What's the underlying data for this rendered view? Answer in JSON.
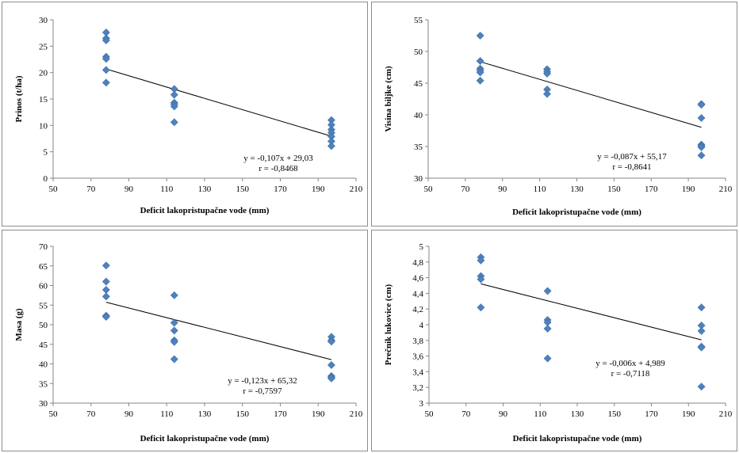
{
  "chart_data": [
    {
      "type": "scatter",
      "xlabel": "Deficit lakopristupačne vode (mm)",
      "ylabel": "Prinos (t/ha)",
      "xlim": [
        50,
        210
      ],
      "ylim": [
        0,
        30
      ],
      "xticks": [
        "50",
        "70",
        "90",
        "110",
        "130",
        "150",
        "170",
        "190",
        "210"
      ],
      "yticks": [
        "0",
        "5",
        "10",
        "15",
        "20",
        "25",
        "30"
      ],
      "marker_color": "#4f81bd",
      "points": [
        [
          78,
          27.6
        ],
        [
          78,
          26.5
        ],
        [
          78,
          26.1
        ],
        [
          78,
          23.0
        ],
        [
          78,
          22.6
        ],
        [
          78,
          20.5
        ],
        [
          78,
          18.1
        ],
        [
          114,
          16.9
        ],
        [
          114,
          15.8
        ],
        [
          114,
          14.3
        ],
        [
          114,
          14.0
        ],
        [
          114,
          13.6
        ],
        [
          114,
          10.6
        ],
        [
          197,
          11.0
        ],
        [
          197,
          10.1
        ],
        [
          197,
          9.2
        ],
        [
          197,
          8.6
        ],
        [
          197,
          7.9
        ],
        [
          197,
          7.0
        ],
        [
          197,
          6.1
        ]
      ],
      "trendline": {
        "slope": -0.107,
        "intercept": 29.03,
        "x_range": [
          78,
          197
        ]
      },
      "equation": "y = -0,107x + 29,03",
      "r_text": "r = -0,8468"
    },
    {
      "type": "scatter",
      "xlabel": "Deficit lakopristupačne vode (mm)",
      "ylabel": "Visina biljke (cm)",
      "xlim": [
        50,
        210
      ],
      "ylim": [
        30,
        55
      ],
      "xticks": [
        "50",
        "70",
        "90",
        "110",
        "130",
        "150",
        "170",
        "190",
        "210"
      ],
      "yticks": [
        "30",
        "35",
        "40",
        "45",
        "50",
        "55"
      ],
      "marker_color": "#4f81bd",
      "points": [
        [
          78,
          52.5
        ],
        [
          78,
          48.5
        ],
        [
          78,
          47.3
        ],
        [
          78,
          47.0
        ],
        [
          78,
          46.7
        ],
        [
          78,
          45.4
        ],
        [
          114,
          47.2
        ],
        [
          114,
          46.8
        ],
        [
          114,
          46.5
        ],
        [
          114,
          44.0
        ],
        [
          114,
          43.3
        ],
        [
          197,
          41.7
        ],
        [
          197,
          41.6
        ],
        [
          197,
          39.5
        ],
        [
          197,
          35.3
        ],
        [
          197,
          35.1
        ],
        [
          197,
          34.9
        ],
        [
          197,
          33.6
        ]
      ],
      "trendline": {
        "slope": -0.087,
        "intercept": 55.17,
        "x_range": [
          78,
          197
        ]
      },
      "equation": "y = -0,087x + 55,17",
      "r_text": "r = -0,8641"
    },
    {
      "type": "scatter",
      "xlabel": "Deficit lakopristupačne vode (mm)",
      "ylabel": "Masa (g)",
      "xlim": [
        50,
        210
      ],
      "ylim": [
        30,
        70
      ],
      "xticks": [
        "50",
        "70",
        "90",
        "110",
        "130",
        "150",
        "170",
        "190",
        "210"
      ],
      "yticks": [
        "30",
        "35",
        "40",
        "45",
        "50",
        "55",
        "60",
        "65",
        "70"
      ],
      "marker_color": "#4f81bd",
      "points": [
        [
          78,
          65.1
        ],
        [
          78,
          61.0
        ],
        [
          78,
          58.9
        ],
        [
          78,
          57.2
        ],
        [
          78,
          52.3
        ],
        [
          78,
          52.0
        ],
        [
          114,
          57.5
        ],
        [
          114,
          50.5
        ],
        [
          114,
          48.5
        ],
        [
          114,
          46.0
        ],
        [
          114,
          45.6
        ],
        [
          114,
          41.2
        ],
        [
          197,
          46.9
        ],
        [
          197,
          46.0
        ],
        [
          197,
          45.7
        ],
        [
          197,
          39.7
        ],
        [
          197,
          36.9
        ],
        [
          197,
          36.6
        ],
        [
          197,
          36.3
        ]
      ],
      "trendline": {
        "slope": -0.123,
        "intercept": 65.32,
        "x_range": [
          78,
          197
        ]
      },
      "equation": "y = -0,123x + 65,32",
      "r_text": "r = -0,7597"
    },
    {
      "type": "scatter",
      "xlabel": "Deficit lakopristupačne vode (mm)",
      "ylabel": "Prečnik lukovice (cm)",
      "xlim": [
        50,
        210
      ],
      "ylim": [
        3,
        5
      ],
      "xticks": [
        "50",
        "70",
        "90",
        "110",
        "130",
        "150",
        "170",
        "190",
        "210"
      ],
      "yticks": [
        "3",
        "3,2",
        "3,4",
        "3,6",
        "3,8",
        "4",
        "4,2",
        "4,4",
        "4,6",
        "4,8",
        "5"
      ],
      "marker_color": "#4f81bd",
      "points": [
        [
          78,
          4.86
        ],
        [
          78,
          4.82
        ],
        [
          78,
          4.62
        ],
        [
          78,
          4.58
        ],
        [
          78,
          4.22
        ],
        [
          114,
          4.43
        ],
        [
          114,
          4.06
        ],
        [
          114,
          4.03
        ],
        [
          114,
          3.95
        ],
        [
          114,
          3.57
        ],
        [
          197,
          4.22
        ],
        [
          197,
          3.99
        ],
        [
          197,
          3.92
        ],
        [
          197,
          3.72
        ],
        [
          197,
          3.71
        ],
        [
          197,
          3.21
        ]
      ],
      "trendline": {
        "slope": -0.006,
        "intercept": 4.989,
        "x_range": [
          78,
          197
        ]
      },
      "equation": "y = -0,006x + 4,989",
      "r_text": "r = -0,7118"
    }
  ]
}
